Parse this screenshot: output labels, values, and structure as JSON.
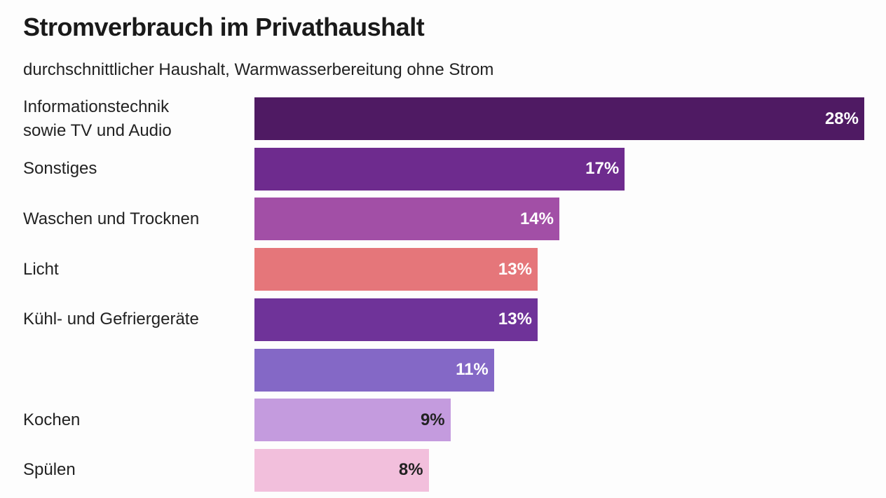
{
  "chart_data": {
    "type": "bar",
    "orientation": "horizontal",
    "title": "Stromverbrauch im Privathaushalt",
    "subtitle": "durchschnittlicher Haushalt, Warmwasserbereitung ohne Strom",
    "categories": [
      "Informationstechnik\nsowie TV und Audio",
      "Sonstiges",
      "Waschen und Trocknen",
      "Licht",
      "Kühl- und Gefriergeräte",
      null,
      "Kochen",
      "Spülen"
    ],
    "values": [
      28,
      17,
      14,
      13,
      13,
      11,
      9,
      8
    ],
    "value_labels": [
      "28%",
      "17%",
      "14%",
      "13%",
      "13%",
      "11%",
      "9%",
      "8%"
    ],
    "colors": [
      "#4f1a63",
      "#6e2b8e",
      "#a24fa6",
      "#e5767a",
      "#6f3399",
      "#8468c6",
      "#c49bde",
      "#f2bfdc"
    ]
  }
}
